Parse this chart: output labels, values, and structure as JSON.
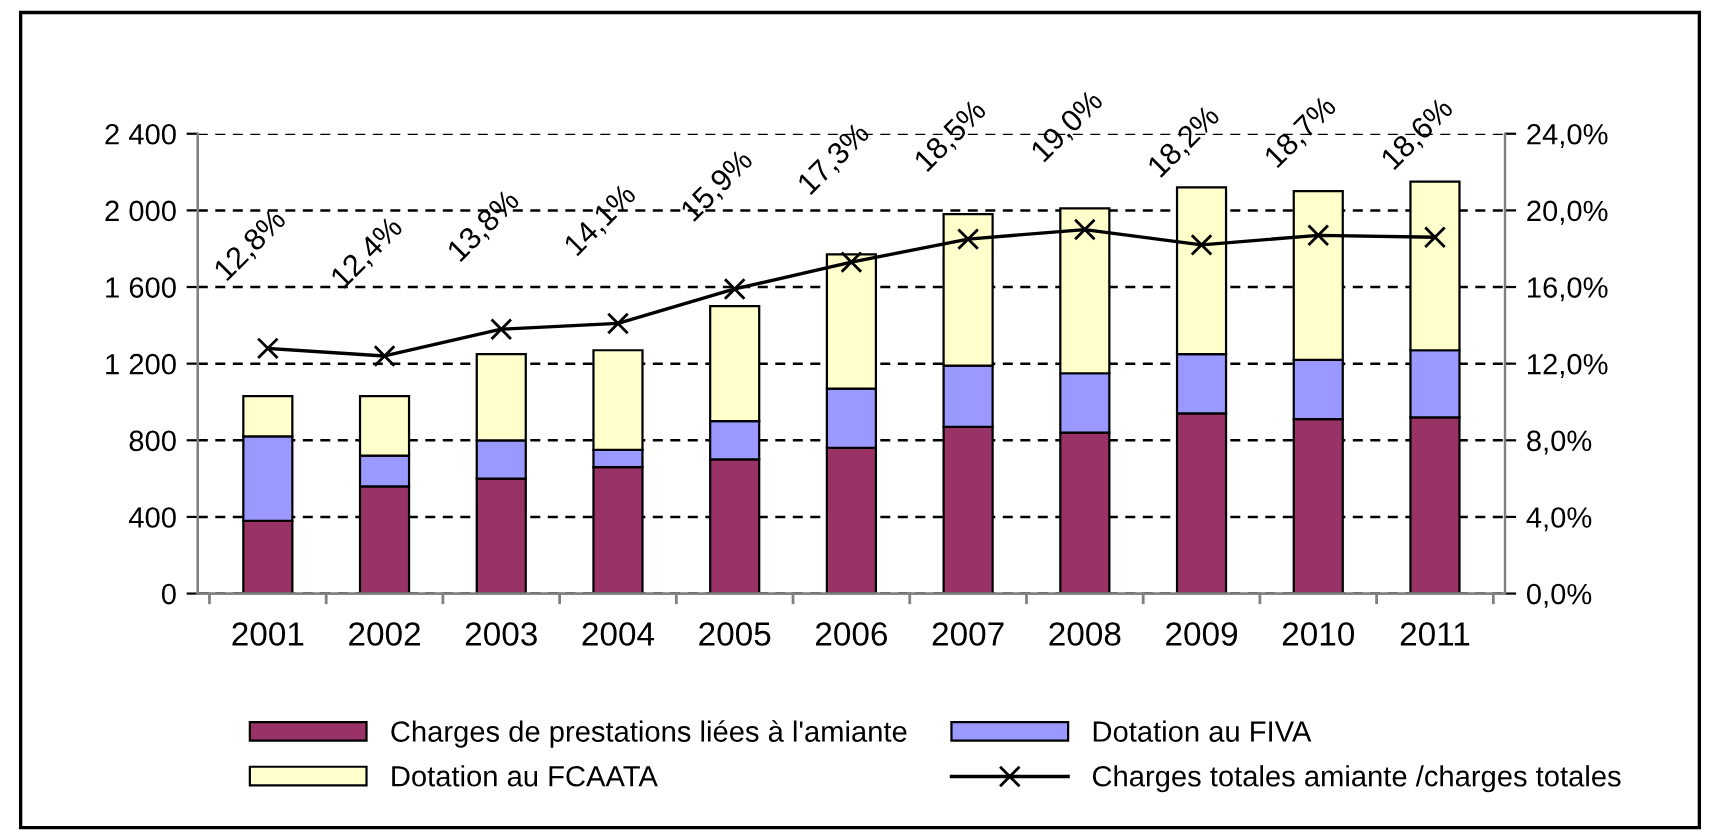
{
  "chart_data": {
    "type": "bar",
    "stacked": true,
    "categories": [
      "2001",
      "2002",
      "2003",
      "2004",
      "2005",
      "2006",
      "2007",
      "2008",
      "2009",
      "2010",
      "2011"
    ],
    "series": [
      {
        "name": "Charges de prestations liées à l'amiante",
        "color": "#993366",
        "values": [
          380,
          560,
          600,
          660,
          700,
          760,
          870,
          840,
          940,
          910,
          920
        ]
      },
      {
        "name": "Dotation au FIVA",
        "color": "#9999ff",
        "values": [
          440,
          160,
          200,
          90,
          200,
          310,
          320,
          310,
          310,
          310,
          350
        ]
      },
      {
        "name": "Dotation au FCAATA",
        "color": "#ffffcc",
        "values": [
          210,
          310,
          450,
          520,
          600,
          700,
          790,
          860,
          870,
          880,
          880
        ]
      },
      {
        "name": "Charges totales amiante /charges totales",
        "type": "line",
        "axis": "y2",
        "color": "#000000",
        "marker": "cross",
        "values": [
          12.8,
          12.4,
          13.8,
          14.1,
          15.9,
          17.3,
          18.5,
          19.0,
          18.2,
          18.7,
          18.6
        ],
        "value_labels": [
          "12,8%",
          "12,4%",
          "13,8%",
          "14,1%",
          "15,9%",
          "17,3%",
          "18,5%",
          "19,0%",
          "18,2%",
          "18,7%",
          "18,6%"
        ]
      }
    ],
    "ylim": [
      0,
      2400
    ],
    "yticks": [
      0,
      {
        "value": 400,
        "label": "400"
      },
      {
        "value": 800,
        "label": "800"
      },
      {
        "value": 1200,
        "label": "1 200"
      },
      {
        "value": 1600,
        "label": "1 600"
      },
      {
        "value": 2000,
        "label": "2 000"
      },
      {
        "value": 2400,
        "label": "2 400"
      }
    ],
    "y2lim": [
      0,
      24
    ],
    "y2ticks": [
      {
        "value": 0,
        "label": "0,0%"
      },
      {
        "value": 4,
        "label": "4,0%"
      },
      {
        "value": 8,
        "label": "8,0%"
      },
      {
        "value": 12,
        "label": "12,0%"
      },
      {
        "value": 16,
        "label": "16,0%"
      },
      {
        "value": 20,
        "label": "20,0%"
      },
      {
        "value": 24,
        "label": "24,0%"
      }
    ],
    "grid": "y",
    "legend": "bottom"
  }
}
